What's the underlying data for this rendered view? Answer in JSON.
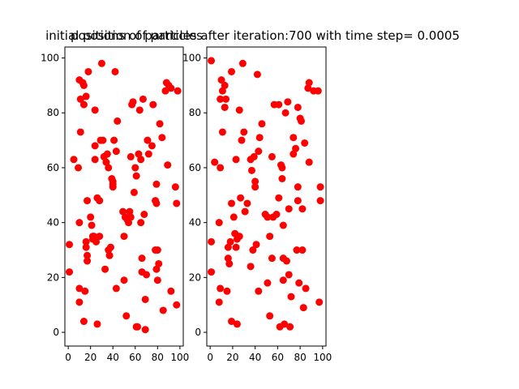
{
  "chart_data": [
    {
      "type": "scatter",
      "title": "initial position of particles",
      "xlabel": "",
      "ylabel": "",
      "xlim": [
        -3,
        103
      ],
      "ylim": [
        -5,
        104
      ],
      "xticks": [
        0,
        20,
        40,
        60,
        80,
        100
      ],
      "yticks": [
        0,
        20,
        40,
        60,
        80,
        100
      ],
      "grid": false,
      "color": "#ff0000",
      "points": [
        [
          1,
          32
        ],
        [
          1,
          22
        ],
        [
          5,
          63
        ],
        [
          9,
          60
        ],
        [
          10,
          40
        ],
        [
          10,
          16
        ],
        [
          10,
          11
        ],
        [
          10,
          92
        ],
        [
          11,
          73
        ],
        [
          11,
          85
        ],
        [
          13,
          91
        ],
        [
          14,
          90
        ],
        [
          14,
          83
        ],
        [
          14,
          4
        ],
        [
          15,
          15
        ],
        [
          16,
          33
        ],
        [
          16,
          31
        ],
        [
          16,
          86
        ],
        [
          17,
          28
        ],
        [
          17,
          26
        ],
        [
          17,
          48
        ],
        [
          18,
          95
        ],
        [
          20,
          42
        ],
        [
          21,
          39
        ],
        [
          22,
          35
        ],
        [
          22,
          34
        ],
        [
          23,
          35
        ],
        [
          24,
          68
        ],
        [
          24,
          63
        ],
        [
          24,
          81
        ],
        [
          25,
          33
        ],
        [
          26,
          3
        ],
        [
          26,
          49
        ],
        [
          28,
          35
        ],
        [
          28,
          48
        ],
        [
          29,
          70
        ],
        [
          30,
          98
        ],
        [
          31,
          70
        ],
        [
          32,
          64
        ],
        [
          33,
          23
        ],
        [
          34,
          62
        ],
        [
          35,
          65
        ],
        [
          36,
          60
        ],
        [
          36,
          30
        ],
        [
          37,
          28
        ],
        [
          38,
          31
        ],
        [
          39,
          56
        ],
        [
          40,
          53
        ],
        [
          40,
          54
        ],
        [
          40,
          55
        ],
        [
          41,
          70
        ],
        [
          42,
          95
        ],
        [
          43,
          66
        ],
        [
          43,
          16
        ],
        [
          44,
          77
        ],
        [
          49,
          44
        ],
        [
          50,
          35
        ],
        [
          50,
          19
        ],
        [
          51,
          42
        ],
        [
          52,
          6
        ],
        [
          53,
          41
        ],
        [
          54,
          40
        ],
        [
          55,
          44
        ],
        [
          56,
          64
        ],
        [
          56,
          42
        ],
        [
          57,
          83
        ],
        [
          58,
          84
        ],
        [
          59,
          51
        ],
        [
          60,
          60
        ],
        [
          61,
          2
        ],
        [
          61,
          57
        ],
        [
          62,
          2
        ],
        [
          63,
          65
        ],
        [
          64,
          81
        ],
        [
          65,
          63
        ],
        [
          65,
          40
        ],
        [
          66,
          27
        ],
        [
          66,
          22
        ],
        [
          67,
          85
        ],
        [
          68,
          43
        ],
        [
          69,
          12
        ],
        [
          69,
          1
        ],
        [
          70,
          21
        ],
        [
          71,
          70
        ],
        [
          72,
          65
        ],
        [
          75,
          68
        ],
        [
          76,
          83
        ],
        [
          78,
          30
        ],
        [
          78,
          48
        ],
        [
          79,
          47
        ],
        [
          79,
          23
        ],
        [
          79,
          54
        ],
        [
          80,
          30
        ],
        [
          80,
          19
        ],
        [
          81,
          25
        ],
        [
          82,
          76
        ],
        [
          84,
          71
        ],
        [
          85,
          8
        ],
        [
          87,
          88
        ],
        [
          88,
          91
        ],
        [
          89,
          61
        ],
        [
          90,
          90
        ],
        [
          92,
          89
        ],
        [
          92,
          15
        ],
        [
          96,
          53
        ],
        [
          97,
          10
        ],
        [
          97,
          47
        ],
        [
          98,
          88
        ]
      ]
    },
    {
      "type": "scatter",
      "title": "positions of particles after iteration:700 with time step= 0.0005",
      "xlabel": "",
      "ylabel": "",
      "xlim": [
        -3,
        103
      ],
      "ylim": [
        -5,
        104
      ],
      "xticks": [
        0,
        20,
        40,
        60,
        80,
        100
      ],
      "yticks": [
        0,
        20,
        40,
        60,
        80,
        100
      ],
      "grid": false,
      "color": "#ff0000",
      "points": [
        [
          1,
          99
        ],
        [
          1,
          33
        ],
        [
          1,
          22
        ],
        [
          4,
          62
        ],
        [
          8,
          40
        ],
        [
          8,
          11
        ],
        [
          9,
          60
        ],
        [
          9,
          16
        ],
        [
          9,
          85
        ],
        [
          10,
          92
        ],
        [
          11,
          73
        ],
        [
          11,
          88
        ],
        [
          13,
          82
        ],
        [
          13,
          90
        ],
        [
          14,
          85
        ],
        [
          15,
          15
        ],
        [
          16,
          27
        ],
        [
          16,
          31
        ],
        [
          17,
          25
        ],
        [
          18,
          33
        ],
        [
          19,
          4
        ],
        [
          19,
          47
        ],
        [
          19,
          95
        ],
        [
          21,
          42
        ],
        [
          22,
          36
        ],
        [
          23,
          31
        ],
        [
          23,
          63
        ],
        [
          24,
          3
        ],
        [
          24,
          34
        ],
        [
          26,
          81
        ],
        [
          26,
          35
        ],
        [
          27,
          49
        ],
        [
          28,
          70
        ],
        [
          29,
          98
        ],
        [
          30,
          73
        ],
        [
          31,
          44
        ],
        [
          33,
          47
        ],
        [
          36,
          24
        ],
        [
          36,
          63
        ],
        [
          37,
          59
        ],
        [
          38,
          30
        ],
        [
          39,
          64
        ],
        [
          40,
          55
        ],
        [
          40,
          53
        ],
        [
          41,
          32
        ],
        [
          42,
          94
        ],
        [
          43,
          15
        ],
        [
          43,
          66
        ],
        [
          44,
          71
        ],
        [
          46,
          76
        ],
        [
          49,
          43
        ],
        [
          51,
          42
        ],
        [
          51,
          18
        ],
        [
          53,
          35
        ],
        [
          53,
          6
        ],
        [
          55,
          27
        ],
        [
          55,
          64
        ],
        [
          56,
          42
        ],
        [
          57,
          83
        ],
        [
          59,
          43
        ],
        [
          61,
          49
        ],
        [
          61,
          83
        ],
        [
          62,
          2
        ],
        [
          63,
          61
        ],
        [
          64,
          56
        ],
        [
          64,
          60
        ],
        [
          65,
          39
        ],
        [
          65,
          27
        ],
        [
          65,
          19
        ],
        [
          66,
          3
        ],
        [
          67,
          80
        ],
        [
          68,
          26
        ],
        [
          69,
          84
        ],
        [
          70,
          45
        ],
        [
          70,
          21
        ],
        [
          71,
          2
        ],
        [
          72,
          13
        ],
        [
          74,
          65
        ],
        [
          74,
          71
        ],
        [
          76,
          67
        ],
        [
          77,
          30
        ],
        [
          78,
          82
        ],
        [
          78,
          53
        ],
        [
          78,
          48
        ],
        [
          79,
          18
        ],
        [
          80,
          78
        ],
        [
          81,
          77
        ],
        [
          82,
          30
        ],
        [
          82,
          45
        ],
        [
          83,
          9
        ],
        [
          84,
          69
        ],
        [
          85,
          16
        ],
        [
          87,
          89
        ],
        [
          88,
          91
        ],
        [
          88,
          62
        ],
        [
          92,
          88
        ],
        [
          96,
          88
        ],
        [
          97,
          11
        ],
        [
          98,
          53
        ],
        [
          98,
          48
        ]
      ]
    }
  ]
}
